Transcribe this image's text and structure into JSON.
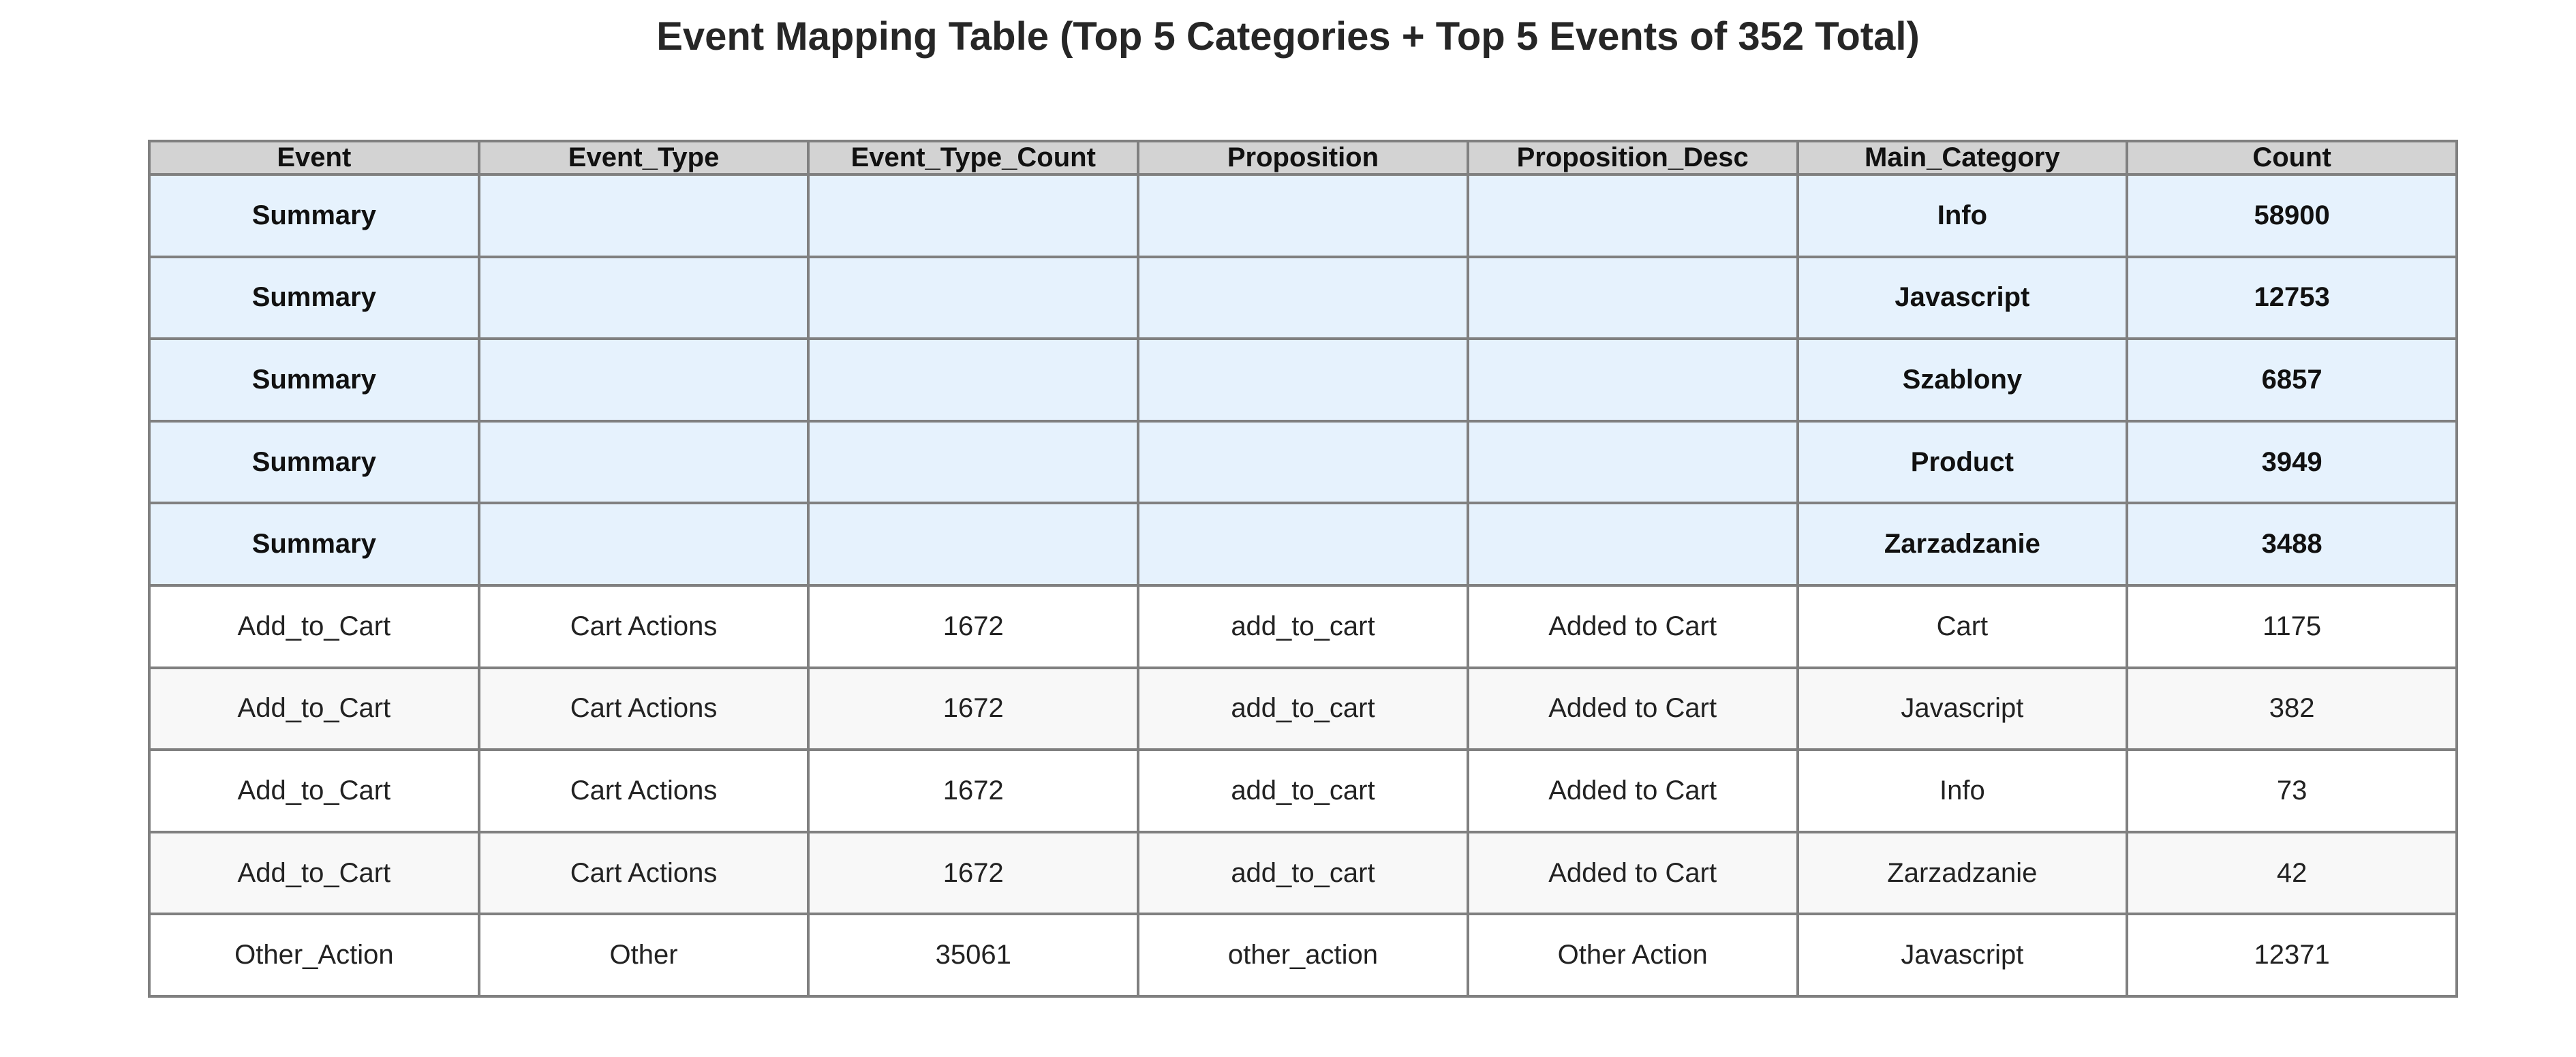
{
  "chart_data": {
    "type": "table",
    "title": "Event Mapping Table (Top 5 Categories + Top 5 Events of 352 Total)",
    "columns": [
      "Event",
      "Event_Type",
      "Event_Type_Count",
      "Proposition",
      "Proposition_Desc",
      "Main_Category",
      "Count"
    ],
    "rows": [
      {
        "kind": "summary",
        "cells": [
          "Summary",
          "",
          "",
          "",
          "",
          "Info",
          "58900"
        ]
      },
      {
        "kind": "summary",
        "cells": [
          "Summary",
          "",
          "",
          "",
          "",
          "Javascript",
          "12753"
        ]
      },
      {
        "kind": "summary",
        "cells": [
          "Summary",
          "",
          "",
          "",
          "",
          "Szablony",
          "6857"
        ]
      },
      {
        "kind": "summary",
        "cells": [
          "Summary",
          "",
          "",
          "",
          "",
          "Product",
          "3949"
        ]
      },
      {
        "kind": "summary",
        "cells": [
          "Summary",
          "",
          "",
          "",
          "",
          "Zarzadzanie",
          "3488"
        ]
      },
      {
        "kind": "event",
        "cells": [
          "Add_to_Cart",
          "Cart Actions",
          "1672",
          "add_to_cart",
          "Added to Cart",
          "Cart",
          "1175"
        ]
      },
      {
        "kind": "event",
        "cells": [
          "Add_to_Cart",
          "Cart Actions",
          "1672",
          "add_to_cart",
          "Added to Cart",
          "Javascript",
          "382"
        ]
      },
      {
        "kind": "event",
        "cells": [
          "Add_to_Cart",
          "Cart Actions",
          "1672",
          "add_to_cart",
          "Added to Cart",
          "Info",
          "73"
        ]
      },
      {
        "kind": "event",
        "cells": [
          "Add_to_Cart",
          "Cart Actions",
          "1672",
          "add_to_cart",
          "Added to Cart",
          "Zarzadzanie",
          "42"
        ]
      },
      {
        "kind": "event",
        "cells": [
          "Other_Action",
          "Other",
          "35061",
          "other_action",
          "Other Action",
          "Javascript",
          "12371"
        ]
      }
    ],
    "colors": {
      "header_bg": "#d3d3d3",
      "summary_bg": "#e6f2fd",
      "row_bg": "#ffffff",
      "row_alt_bg": "#f8f8f8",
      "border": "#808080"
    }
  }
}
